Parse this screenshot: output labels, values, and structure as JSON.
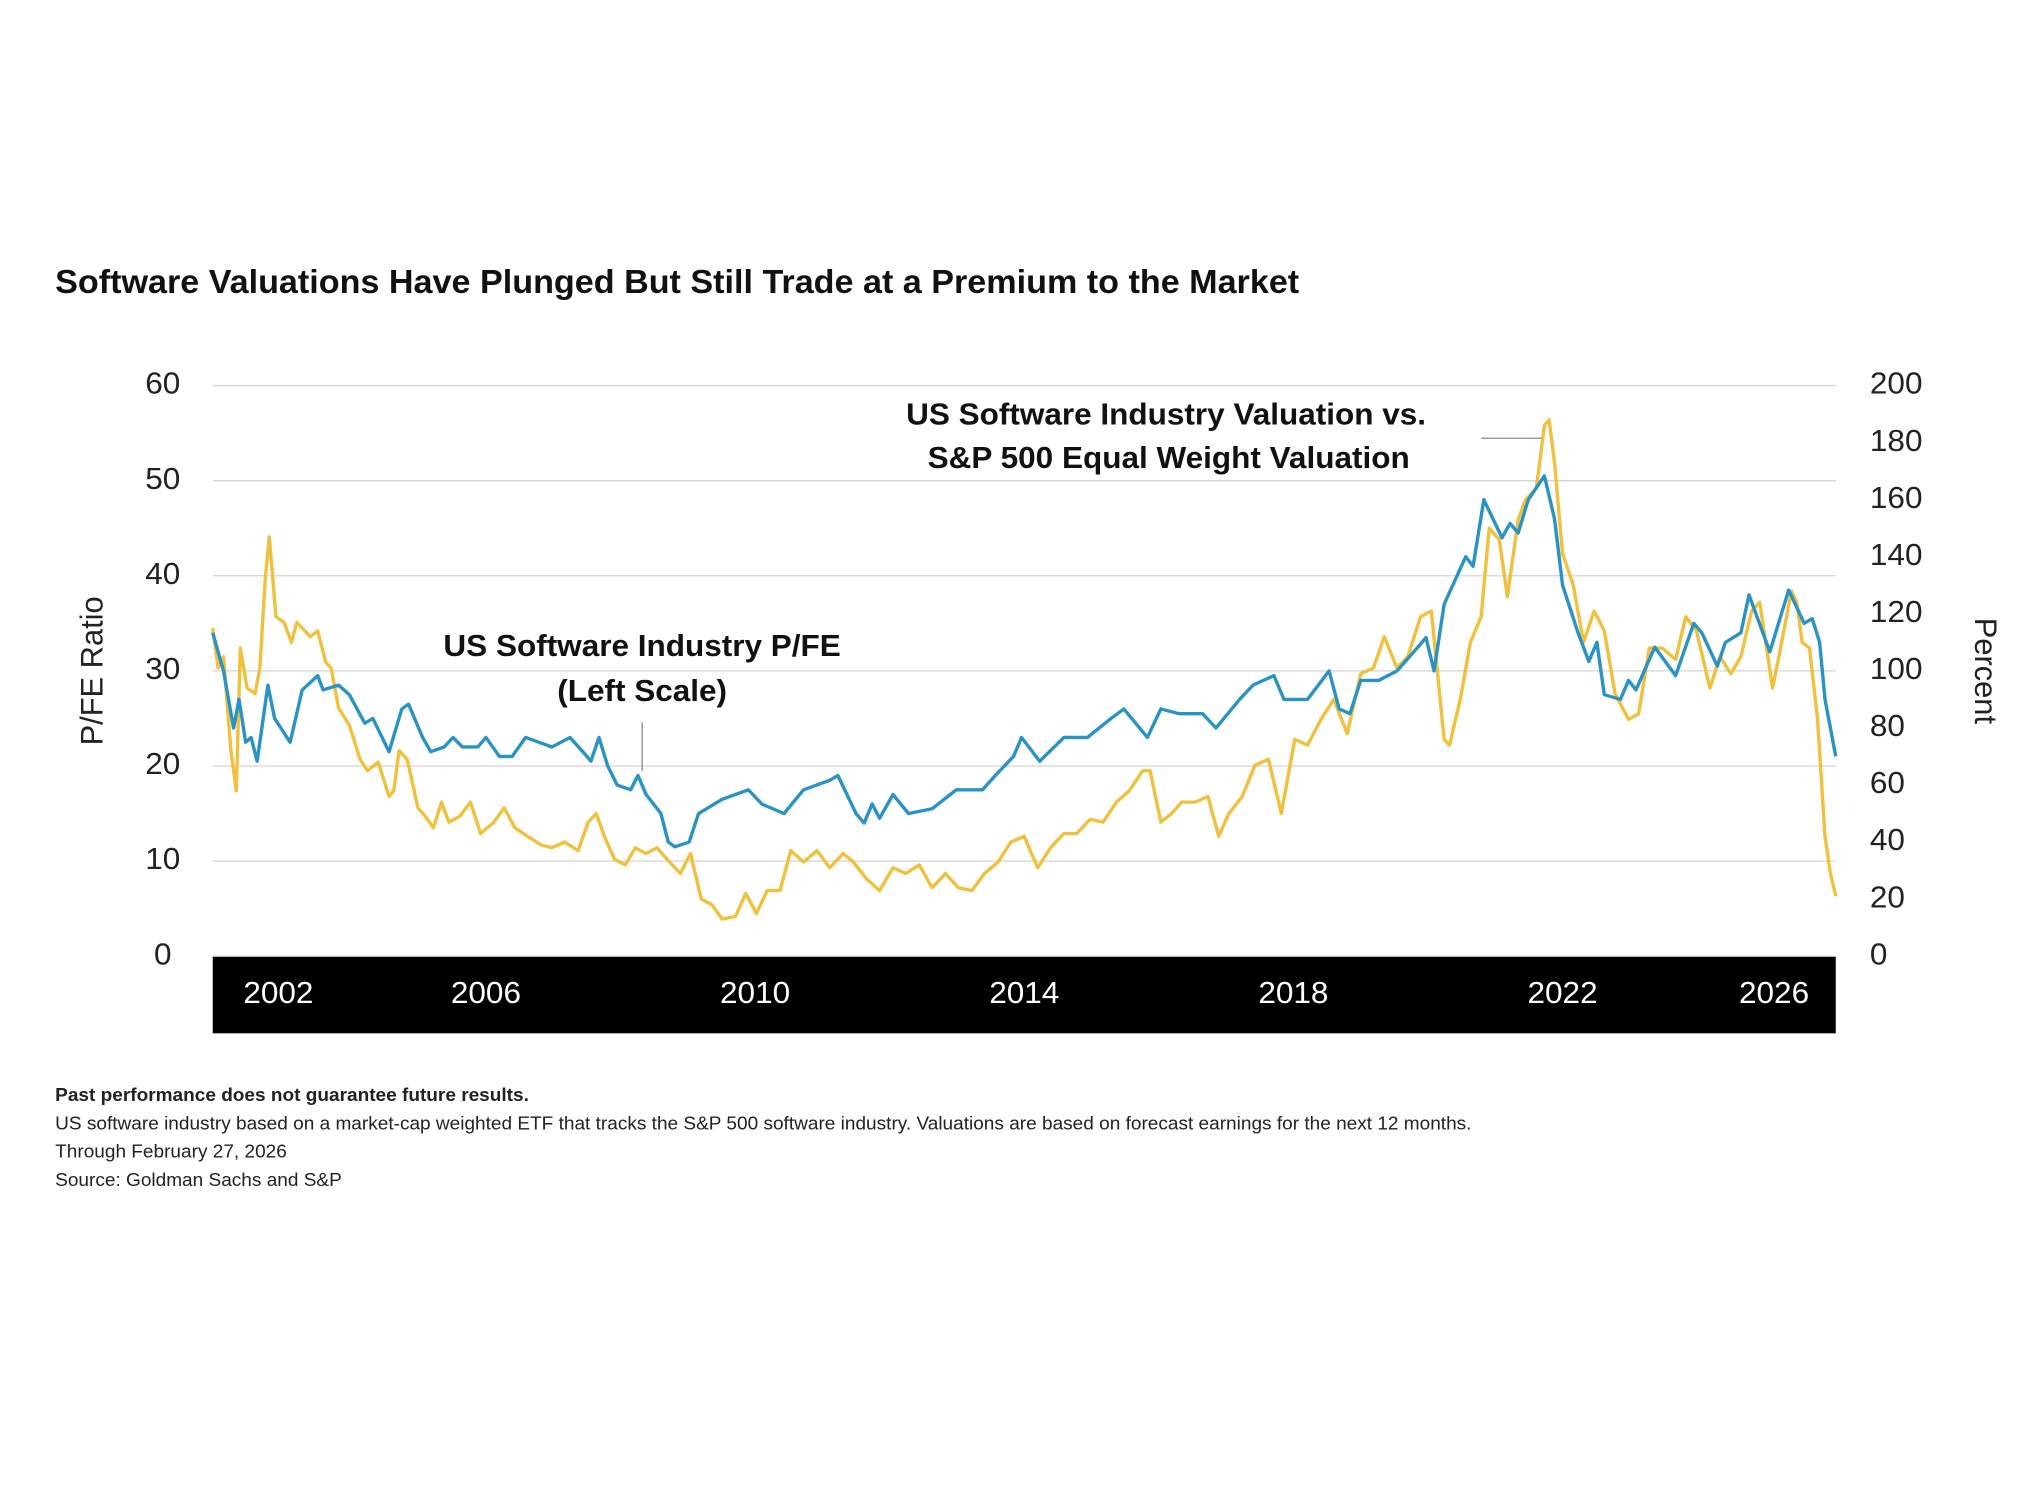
{
  "chart_data": {
    "type": "line",
    "title": "Software Valuations Have Plunged But Still Trade at a Premium to the Market",
    "y_label": "P/FE Ratio",
    "y2_label": "Percent",
    "xlim": [
      2001.94,
      2026.06
    ],
    "xticks": [
      2002,
      2006,
      2010,
      2014,
      2018,
      2022,
      2026
    ],
    "ylim": [
      0,
      60
    ],
    "yticks": [
      0,
      10,
      20,
      30,
      40,
      50,
      60
    ],
    "y2lim": [
      0,
      200
    ],
    "y2ticks": [
      0,
      20,
      40,
      60,
      80,
      100,
      120,
      140,
      160,
      180,
      200
    ],
    "grid": true,
    "series": [
      {
        "name": [
          "US Software Industry P/FE",
          "(Left Scale)"
        ],
        "color": "#2b93c3",
        "axis": "y",
        "x": [
          2001.94,
          2002.1,
          2002.25,
          2002.33,
          2002.43,
          2002.51,
          2002.6,
          2002.76,
          2002.86,
          2003.09,
          2003.27,
          2003.5,
          2003.58,
          2003.81,
          2003.97,
          2004.2,
          2004.32,
          2004.56,
          2004.75,
          2004.85,
          2005.06,
          2005.18,
          2005.38,
          2005.51,
          2005.65,
          2005.88,
          2006.0,
          2006.2,
          2006.39,
          2006.59,
          2006.98,
          2007.25,
          2007.44,
          2007.56,
          2007.68,
          2007.81,
          2007.95,
          2008.15,
          2008.26,
          2008.38,
          2008.6,
          2008.71,
          2008.81,
          2009.02,
          2009.16,
          2009.51,
          2009.9,
          2010.1,
          2010.43,
          2010.72,
          2011.11,
          2011.23,
          2011.5,
          2011.62,
          2011.74,
          2011.85,
          2012.05,
          2012.28,
          2012.63,
          2012.99,
          2013.38,
          2013.57,
          2013.84,
          2013.96,
          2014.23,
          2014.59,
          2014.94,
          2015.29,
          2015.48,
          2015.83,
          2016.03,
          2016.3,
          2016.65,
          2016.85,
          2017.2,
          2017.4,
          2017.71,
          2017.86,
          2018.21,
          2018.53,
          2018.68,
          2018.84,
          2019.0,
          2019.27,
          2019.54,
          2019.85,
          2019.97,
          2020.09,
          2020.24,
          2020.56,
          2020.67,
          2020.83,
          2021.1,
          2021.22,
          2021.34,
          2021.49,
          2021.73,
          2021.88,
          2022.0,
          2022.23,
          2022.39,
          2022.51,
          2022.62,
          2022.86,
          2022.98,
          2023.09,
          2023.37,
          2023.68,
          2023.95,
          2024.07,
          2024.3,
          2024.42,
          2024.65,
          2024.77,
          2025.08,
          2025.36,
          2025.59,
          2025.71,
          2025.82,
          2025.9,
          2026.06
        ],
        "values": [
          34,
          30,
          24,
          27,
          22.5,
          23,
          20.5,
          28.5,
          25,
          22.5,
          28,
          29.5,
          28,
          28.5,
          27.5,
          24.5,
          25,
          21.5,
          26,
          26.5,
          23,
          21.5,
          22,
          23,
          22,
          22,
          23,
          21,
          21,
          23,
          22,
          23,
          21.5,
          20.5,
          23,
          20,
          18,
          17.5,
          19,
          17,
          15,
          12,
          11.5,
          12,
          15,
          16.5,
          17.5,
          16,
          15,
          17.5,
          18.5,
          19,
          15,
          14,
          16,
          14.5,
          17,
          15,
          15.5,
          17.5,
          17.5,
          19,
          21,
          23,
          20.5,
          23,
          23,
          25,
          26,
          23,
          26,
          25.5,
          25.5,
          24,
          27,
          28.5,
          29.5,
          27,
          27,
          30,
          26,
          25.5,
          29,
          29,
          30,
          32.5,
          33.5,
          30,
          37,
          42,
          41,
          48,
          44,
          45.5,
          44.5,
          48,
          50.5,
          46,
          39,
          34,
          31,
          33,
          27.5,
          27,
          29,
          28,
          32.5,
          29.5,
          35,
          34,
          30.5,
          33,
          34,
          38,
          32,
          38.5,
          35,
          35.5,
          33,
          27,
          21
        ]
      },
      {
        "name": [
          "US Software Industry Valuation vs.",
          "S&P 500 Equal Weight Valuation"
        ],
        "color": "#f0c13e",
        "axis": "y2",
        "x": [
          2001.94,
          2002.02,
          2002.1,
          2002.21,
          2002.29,
          2002.35,
          2002.45,
          2002.57,
          2002.64,
          2002.72,
          2002.78,
          2002.88,
          2003.0,
          2003.11,
          2003.19,
          2003.39,
          2003.5,
          2003.62,
          2003.7,
          2003.81,
          2003.97,
          2004.13,
          2004.24,
          2004.4,
          2004.56,
          2004.63,
          2004.71,
          2004.83,
          2004.99,
          2005.1,
          2005.22,
          2005.34,
          2005.45,
          2005.61,
          2005.77,
          2005.92,
          2006.12,
          2006.27,
          2006.43,
          2006.62,
          2006.82,
          2006.98,
          2007.17,
          2007.37,
          2007.52,
          2007.64,
          2007.76,
          2007.91,
          2008.07,
          2008.22,
          2008.38,
          2008.54,
          2008.73,
          2008.89,
          2009.04,
          2009.2,
          2009.36,
          2009.51,
          2009.71,
          2009.86,
          2010.02,
          2010.18,
          2010.37,
          2010.53,
          2010.72,
          2010.92,
          2011.11,
          2011.31,
          2011.46,
          2011.66,
          2011.85,
          2012.05,
          2012.24,
          2012.44,
          2012.63,
          2012.83,
          2013.02,
          2013.22,
          2013.41,
          2013.61,
          2013.8,
          2014.0,
          2014.2,
          2014.39,
          2014.59,
          2014.78,
          2014.98,
          2015.17,
          2015.37,
          2015.56,
          2015.76,
          2015.87,
          2016.03,
          2016.19,
          2016.34,
          2016.54,
          2016.73,
          2016.89,
          2017.04,
          2017.24,
          2017.43,
          2017.63,
          2017.82,
          2018.02,
          2018.21,
          2018.41,
          2018.6,
          2018.8,
          2019.0,
          2019.19,
          2019.35,
          2019.54,
          2019.7,
          2019.89,
          2020.05,
          2020.24,
          2020.32,
          2020.48,
          2020.63,
          2020.79,
          2020.91,
          2021.06,
          2021.18,
          2021.34,
          2021.45,
          2021.61,
          2021.73,
          2021.8,
          2021.88,
          2022.0,
          2022.16,
          2022.31,
          2022.47,
          2022.62,
          2022.78,
          2022.98,
          2023.13,
          2023.29,
          2023.48,
          2023.68,
          2023.83,
          2023.99,
          2024.19,
          2024.34,
          2024.5,
          2024.65,
          2024.81,
          2024.93,
          2025.12,
          2025.24,
          2025.4,
          2025.48,
          2025.56,
          2025.67,
          2025.79,
          2025.9,
          2025.98,
          2026.06
        ],
        "values": [
          115,
          101,
          105,
          72,
          58,
          108,
          94,
          92,
          101,
          132,
          147,
          119,
          117,
          110,
          117,
          112,
          114,
          103,
          101,
          87,
          81,
          69,
          65,
          68,
          56,
          58,
          72,
          69,
          52,
          49,
          45,
          54,
          47,
          49,
          54,
          43,
          47,
          52,
          45,
          42,
          39,
          38,
          40,
          37,
          47,
          50,
          42,
          34,
          32,
          38,
          36,
          38,
          33,
          29,
          36,
          20,
          18,
          13,
          14,
          22,
          15,
          23,
          23,
          37,
          33,
          37,
          31,
          36,
          33,
          27,
          23,
          31,
          29,
          32,
          24,
          29,
          24,
          23,
          29,
          33,
          40,
          42,
          31,
          38,
          43,
          43,
          48,
          47,
          54,
          58,
          65,
          65,
          47,
          50,
          54,
          54,
          56,
          42,
          50,
          56,
          67,
          69,
          50,
          76,
          74,
          83,
          90,
          78,
          99,
          101,
          112,
          101,
          105,
          119,
          121,
          76,
          74,
          90,
          110,
          119,
          150,
          146,
          126,
          153,
          160,
          164,
          186,
          188,
          173,
          141,
          130,
          110,
          121,
          114,
          92,
          83,
          85,
          108,
          108,
          104,
          119,
          114,
          94,
          105,
          99,
          105,
          121,
          124,
          94,
          108,
          128,
          124,
          110,
          108,
          83,
          42,
          29,
          21
        ]
      }
    ],
    "notes": [
      "Past performance does not guarantee future results.",
      "US software industry based on a market-cap weighted ETF that tracks the S&P 500 software industry. Valuations are based on forecast earnings for the next 12 months.",
      "Through February 27, 2026",
      "Source: Goldman Sachs and S&P"
    ]
  }
}
